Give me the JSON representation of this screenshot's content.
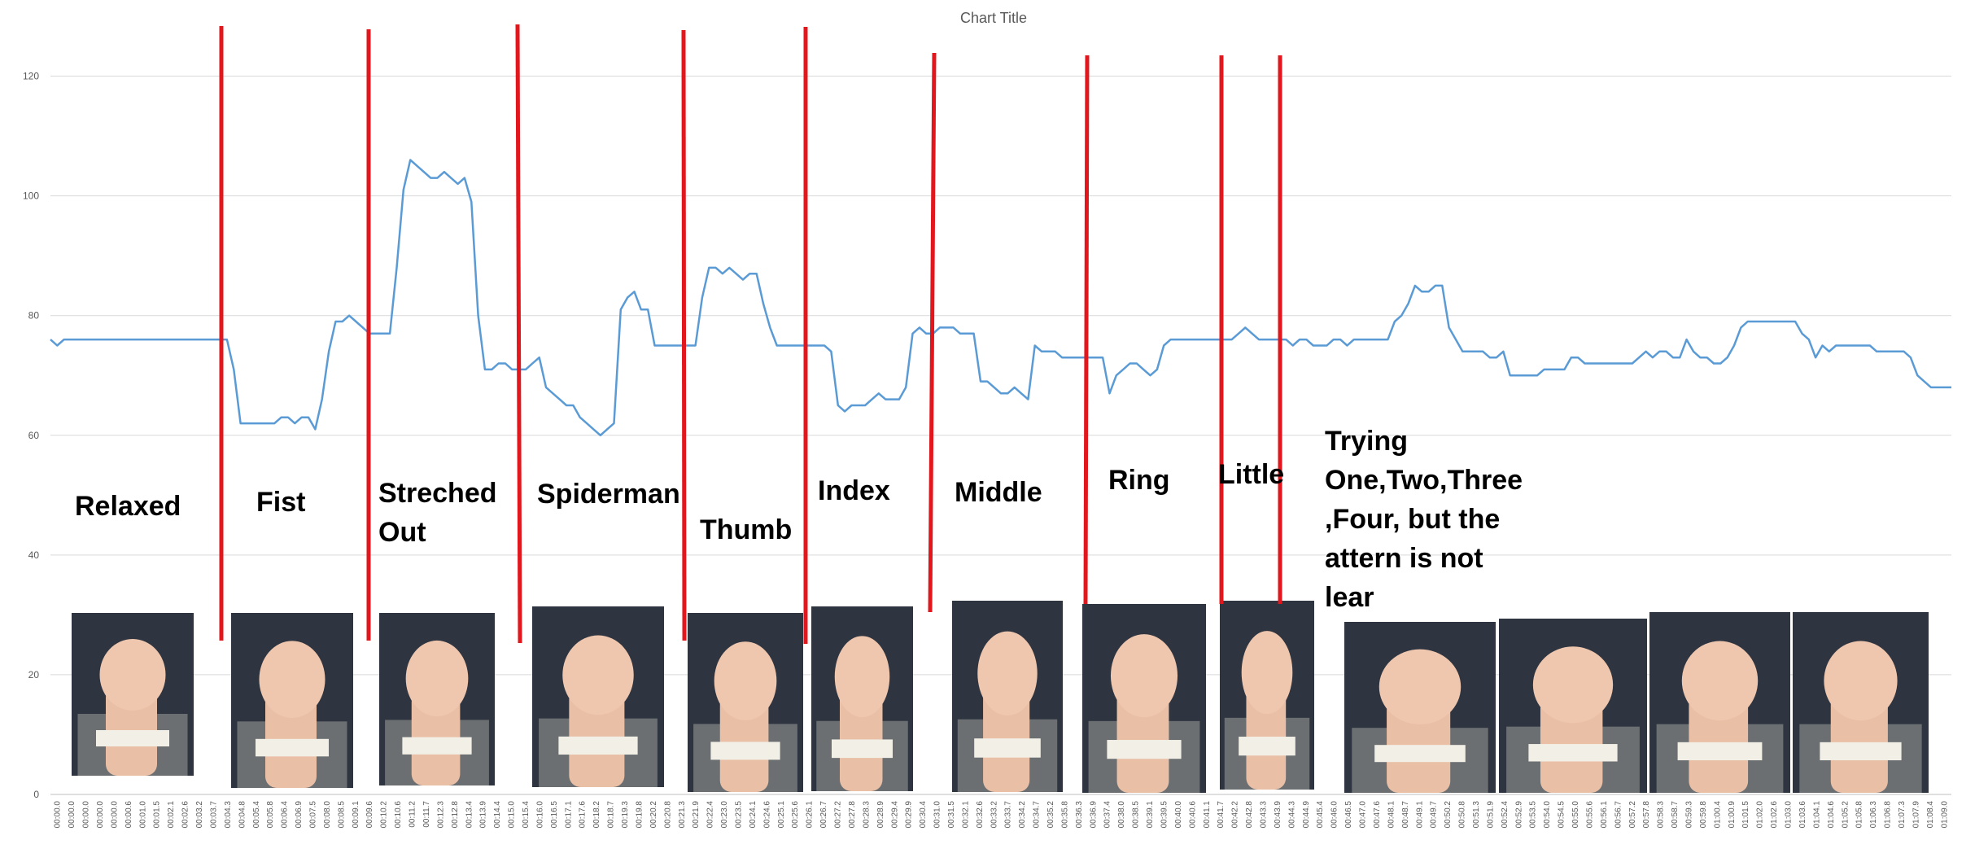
{
  "chart_data": {
    "type": "line",
    "title": "Chart Title",
    "xlabel": "",
    "ylabel": "",
    "ylim": [
      0,
      130
    ],
    "yticks": [
      0,
      20,
      40,
      60,
      80,
      100,
      120
    ],
    "grid": true,
    "x_tick_labels": [
      "00:00.0",
      "00:00.0",
      "00:00.0",
      "00:00.0",
      "00:00.0",
      "00:00.6",
      "00:01.0",
      "00:01.5",
      "00:02.1",
      "00:02.6",
      "00:03.2",
      "00:03.7",
      "00:04.3",
      "00:04.8",
      "00:05.4",
      "00:05.8",
      "00:06.4",
      "00:06.9",
      "00:07.5",
      "00:08.0",
      "00:08.5",
      "00:09.1",
      "00:09.6",
      "00:10.2",
      "00:10.6",
      "00:11.2",
      "00:11.7",
      "00:12.3",
      "00:12.8",
      "00:13.4",
      "00:13.9",
      "00:14.4",
      "00:15.0",
      "00:15.4",
      "00:16.0",
      "00:16.5",
      "00:17.1",
      "00:17.6",
      "00:18.2",
      "00:18.7",
      "00:19.3",
      "00:19.8",
      "00:20.2",
      "00:20.8",
      "00:21.3",
      "00:21.9",
      "00:22.4",
      "00:23.0",
      "00:23.5",
      "00:24.1",
      "00:24.6",
      "00:25.1",
      "00:25.6",
      "00:26.1",
      "00:26.7",
      "00:27.2",
      "00:27.8",
      "00:28.3",
      "00:28.9",
      "00:29.4",
      "00:29.9",
      "00:30.4",
      "00:31.0",
      "00:31.5",
      "00:32.1",
      "00:32.6",
      "00:33.2",
      "00:33.7",
      "00:34.2",
      "00:34.7",
      "00:35.2",
      "00:35.8",
      "00:36.3",
      "00:36.9",
      "00:37.4",
      "00:38.0",
      "00:38.5",
      "00:39.1",
      "00:39.5",
      "00:40.0",
      "00:40.6",
      "00:41.1",
      "00:41.7",
      "00:42.2",
      "00:42.8",
      "00:43.3",
      "00:43.9",
      "00:44.3",
      "00:44.9",
      "00:45.4",
      "00:46.0",
      "00:46.5",
      "00:47.0",
      "00:47.6",
      "00:48.1",
      "00:48.7",
      "00:49.1",
      "00:49.7",
      "00:50.2",
      "00:50.8",
      "00:51.3",
      "00:51.9",
      "00:52.4",
      "00:52.9",
      "00:53.5",
      "00:54.0",
      "00:54.5",
      "00:55.0",
      "00:55.6",
      "00:56.1",
      "00:56.7",
      "00:57.2",
      "00:57.8",
      "00:58.3",
      "00:58.7",
      "00:59.3",
      "00:59.8",
      "01:00.4",
      "01:00.9",
      "01:01.5",
      "01:02.0",
      "01:02.6",
      "01:03.0",
      "01:03.6",
      "01:04.1",
      "01:04.6",
      "01:05.2",
      "01:05.8",
      "01:06.3",
      "01:06.8",
      "01:07.3",
      "01:07.9",
      "01:08.4",
      "01:09.0"
    ],
    "series": [
      {
        "name": "",
        "color": "#5B9BD5",
        "values": [
          76,
          75,
          76,
          76,
          76,
          76,
          76,
          76,
          76,
          76,
          76,
          76,
          76,
          76,
          76,
          76,
          76,
          76,
          76,
          76,
          76,
          76,
          76,
          76,
          76,
          76,
          76,
          71,
          62,
          62,
          62,
          62,
          62,
          62,
          63,
          63,
          62,
          63,
          63,
          61,
          66,
          74,
          79,
          79,
          80,
          79,
          78,
          77,
          77,
          77,
          77,
          88,
          101,
          106,
          105,
          104,
          103,
          103,
          104,
          103,
          102,
          103,
          99,
          80,
          71,
          71,
          72,
          72,
          71,
          71,
          71,
          72,
          73,
          68,
          67,
          66,
          65,
          65,
          63,
          62,
          61,
          60,
          61,
          62,
          81,
          83,
          84,
          81,
          81,
          75,
          75,
          75,
          75,
          75,
          75,
          75,
          83,
          88,
          88,
          87,
          88,
          87,
          86,
          87,
          87,
          82,
          78,
          75,
          75,
          75,
          75,
          75,
          75,
          75,
          75,
          74,
          65,
          64,
          65,
          65,
          65,
          66,
          67,
          66,
          66,
          66,
          68,
          77,
          78,
          77,
          77,
          78,
          78,
          78,
          77,
          77,
          77,
          69,
          69,
          68,
          67,
          67,
          68,
          67,
          66,
          75,
          74,
          74,
          74,
          73,
          73,
          73,
          73,
          73,
          73,
          73,
          67,
          70,
          71,
          72,
          72,
          71,
          70,
          71,
          75,
          76,
          76,
          76,
          76,
          76,
          76,
          76,
          76,
          76,
          76,
          77,
          78,
          77,
          76,
          76,
          76,
          76,
          76,
          75,
          76,
          76,
          75,
          75,
          75,
          76,
          76,
          75,
          76,
          76,
          76,
          76,
          76,
          76,
          79,
          80,
          82,
          85,
          84,
          84,
          85,
          85,
          78,
          76,
          74,
          74,
          74,
          74,
          73,
          73,
          74,
          70,
          70,
          70,
          70,
          70,
          71,
          71,
          71,
          71,
          73,
          73,
          72,
          72,
          72,
          72,
          72,
          72,
          72,
          72,
          73,
          74,
          73,
          74,
          74,
          73,
          73,
          76,
          74,
          73,
          73,
          72,
          72,
          73,
          75,
          78,
          79,
          79,
          79,
          79,
          79,
          79,
          79,
          79,
          77,
          76,
          73,
          75,
          74,
          75,
          75,
          75,
          75,
          75,
          75,
          74,
          74,
          74,
          74,
          74,
          73,
          70,
          69,
          68,
          68,
          68,
          68
        ]
      }
    ]
  },
  "gestures": [
    {
      "label": "Relaxed"
    },
    {
      "label": "Fist"
    },
    {
      "label": "Streched Out"
    },
    {
      "label": "Spiderman"
    },
    {
      "label": "Thumb"
    },
    {
      "label": "Index"
    },
    {
      "label": "Middle"
    },
    {
      "label": "Ring"
    },
    {
      "label": "Little"
    },
    {
      "label": "Trying One,Two,Three ,Four, but the pattern is not clear"
    }
  ],
  "colors": {
    "divider": "#E2171E",
    "grid": "#D9D9D9",
    "line": "#5B9BD5"
  }
}
